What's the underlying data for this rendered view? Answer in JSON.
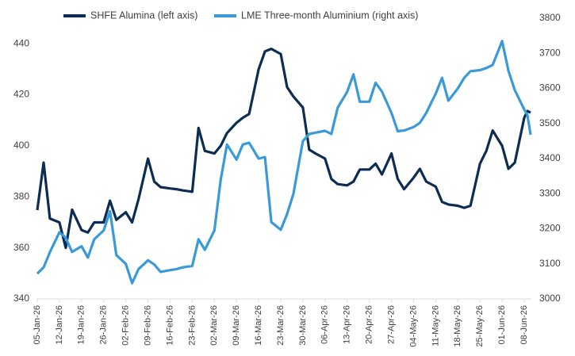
{
  "chart_data": {
    "type": "line",
    "legend": "top",
    "x": [
      "05-Jan-26",
      "07-Jan-26",
      "09-Jan-26",
      "12-Jan-26",
      "14-Jan-26",
      "16-Jan-26",
      "19-Jan-26",
      "21-Jan-26",
      "23-Jan-26",
      "26-Jan-26",
      "28-Jan-26",
      "30-Jan-26",
      "02-Feb-26",
      "04-Feb-26",
      "06-Feb-26",
      "09-Feb-26",
      "11-Feb-26",
      "13-Feb-26",
      "16-Feb-26",
      "18-Feb-26",
      "20-Feb-26",
      "23-Feb-26",
      "25-Feb-26",
      "27-Feb-26",
      "02-Mar-26",
      "04-Mar-26",
      "06-Mar-26",
      "09-Mar-26",
      "11-Mar-26",
      "13-Mar-26",
      "16-Mar-26",
      "18-Mar-26",
      "20-Mar-26",
      "23-Mar-26",
      "25-Mar-26",
      "27-Mar-26",
      "30-Mar-26",
      "01-Apr-26",
      "03-Apr-26",
      "06-Apr-26",
      "08-Apr-26",
      "10-Apr-26",
      "13-Apr-26",
      "15-Apr-26",
      "17-Apr-26",
      "20-Apr-26",
      "22-Apr-26",
      "24-Apr-26",
      "27-Apr-26",
      "29-Apr-26",
      "01-May-26",
      "04-May-26",
      "06-May-26",
      "08-May-26",
      "11-May-26",
      "13-May-26",
      "15-May-26",
      "18-May-26",
      "20-May-26",
      "22-May-26",
      "25-May-26",
      "27-May-26",
      "29-May-26",
      "01-Jun-26",
      "03-Jun-26",
      "05-Jun-26",
      "08-Jun-26",
      "09-Jun-26",
      "10-Jun-26"
    ],
    "xlim": [
      "05-Jan-26",
      "10-Jun-26"
    ],
    "xticks": [
      "05-Jan-26",
      "12-Jan-26",
      "19-Jan-26",
      "26-Jan-26",
      "02-Feb-26",
      "09-Feb-26",
      "16-Feb-26",
      "23-Feb-26",
      "02-Mar-26",
      "09-Mar-26",
      "16-Mar-26",
      "23-Mar-26",
      "30-Mar-26",
      "06-Apr-26",
      "13-Apr-26",
      "20-Apr-26",
      "27-Apr-26",
      "04-May-26",
      "11-May-26",
      "18-May-26",
      "25-May-26",
      "01-Jun-26",
      "08-Jun-26"
    ],
    "ylim": [
      340,
      450
    ],
    "yticks": [
      340,
      360,
      380,
      400,
      420,
      440
    ],
    "y2lim": [
      3000,
      3800
    ],
    "y2ticks": [
      3000,
      3100,
      3200,
      3300,
      3400,
      3500,
      3600,
      3700,
      3800
    ],
    "series": [
      {
        "name": "SHFE Alumina (left axis)",
        "color": "#0d2c54",
        "axis": "y",
        "values": [
          374.8,
          393.4,
          371.5,
          370,
          360,
          375,
          367,
          366,
          370,
          370,
          378.5,
          371,
          374,
          370,
          379,
          395,
          386,
          383.8,
          383.3,
          383,
          382.5,
          382,
          407,
          398,
          397,
          400,
          405,
          409,
          411,
          412.5,
          430,
          437,
          438,
          436,
          423,
          419.3,
          415,
          398.5,
          397,
          395,
          387,
          385,
          384.5,
          386,
          390.7,
          390.7,
          393,
          388.8,
          397,
          387,
          383,
          387.5,
          391,
          386,
          384,
          378,
          377,
          376.5,
          375.7,
          376.5,
          393,
          398,
          406,
          400,
          391,
          393.4,
          411,
          413.6,
          413
        ]
      },
      {
        "name": "LME Three-month Aluminium (right axis)",
        "color": "#3a9ad9",
        "axis": "y2",
        "values": [
          3072,
          3090,
          3133,
          3190,
          3174,
          3134,
          3150,
          3118,
          3170,
          3195,
          3250,
          3125,
          3100,
          3045,
          3085,
          3110,
          3098,
          3077,
          3082,
          3085,
          3090,
          3094,
          3170,
          3140,
          3195,
          3340,
          3440,
          3397,
          3440,
          3445,
          3400,
          3404,
          3219,
          3197,
          3242,
          3300,
          3450,
          3470,
          3474,
          3479,
          3470,
          3545,
          3590,
          3640,
          3562,
          3562,
          3616,
          3591,
          3530,
          3478,
          3480,
          3490,
          3502,
          3530,
          3585,
          3630,
          3565,
          3600,
          3630,
          3649,
          3652,
          3658,
          3667,
          3735,
          3650,
          3595,
          3540,
          3524,
          3468
        ]
      }
    ]
  }
}
